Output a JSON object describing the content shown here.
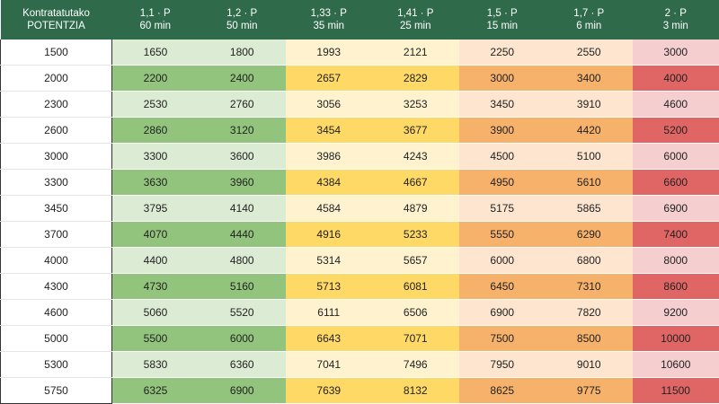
{
  "header": {
    "first": [
      "Kontratatutako",
      "POTENTZIA"
    ],
    "columns": [
      {
        "factor": "1,1 · P",
        "duration": "60 min"
      },
      {
        "factor": "1,2 · P",
        "duration": "50 min"
      },
      {
        "factor": "1,33 · P",
        "duration": "35 min"
      },
      {
        "factor": "1,41 · P",
        "duration": "25 min"
      },
      {
        "factor": "1,5 · P",
        "duration": "15 min"
      },
      {
        "factor": "1,7 · P",
        "duration": "6 min"
      },
      {
        "factor": "2 · P",
        "duration": "3 min"
      }
    ]
  },
  "table": {
    "rows": [
      [
        1500,
        1650,
        1800,
        1993,
        2121,
        2250,
        2550,
        3000
      ],
      [
        2000,
        2200,
        2400,
        2657,
        2829,
        3000,
        3400,
        4000
      ],
      [
        2300,
        2530,
        2760,
        3056,
        3253,
        3450,
        3910,
        4600
      ],
      [
        2600,
        2860,
        3120,
        3454,
        3677,
        3900,
        4420,
        5200
      ],
      [
        3000,
        3300,
        3600,
        3986,
        4243,
        4500,
        5100,
        6000
      ],
      [
        3300,
        3630,
        3960,
        4384,
        4667,
        4950,
        5610,
        6600
      ],
      [
        3450,
        3795,
        4140,
        4584,
        4879,
        5175,
        5865,
        6900
      ],
      [
        3700,
        4070,
        4440,
        4916,
        5233,
        5550,
        6290,
        7400
      ],
      [
        4000,
        4400,
        4800,
        5314,
        5657,
        6000,
        6800,
        8000
      ],
      [
        4300,
        4730,
        5160,
        5713,
        6081,
        6450,
        7310,
        8600
      ],
      [
        4600,
        5060,
        5520,
        6111,
        6506,
        6900,
        7820,
        9200
      ],
      [
        5000,
        5500,
        6000,
        6643,
        7071,
        7500,
        8500,
        10000
      ],
      [
        5300,
        5830,
        6360,
        7041,
        7496,
        7950,
        9010,
        10600
      ],
      [
        5750,
        6325,
        6900,
        7639,
        8132,
        8625,
        9775,
        11500
      ]
    ]
  }
}
